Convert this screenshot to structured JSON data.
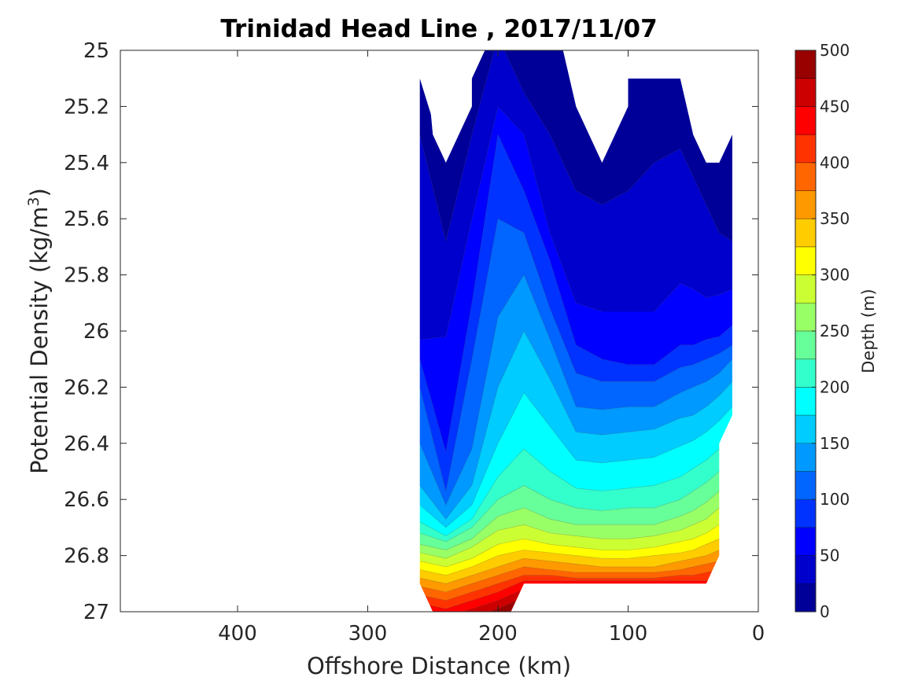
{
  "chart_data": {
    "type": "contour",
    "title": "Trinidad Head Line , 2017/11/07",
    "xlabel": "Offshore Distance (km)",
    "ylabel": "Potential Density (kg/m3)",
    "ylabel_base": "Potential Density (kg/m",
    "ylabel_sup": "3",
    "ylabel_end": ")",
    "xlim": [
      490,
      0
    ],
    "ylim": [
      25,
      27
    ],
    "x_reversed": true,
    "y_reversed": true,
    "x_ticks": [
      400,
      300,
      200,
      100,
      0
    ],
    "x_tick_labels": [
      "400",
      "300",
      "200",
      "100",
      "0"
    ],
    "y_ticks": [
      25,
      25.2,
      25.4,
      25.6,
      25.8,
      26,
      26.2,
      26.4,
      26.6,
      26.8,
      27
    ],
    "y_tick_labels": [
      "25",
      "25.2",
      "25.4",
      "25.6",
      "25.8",
      "26",
      "26.2",
      "26.4",
      "26.6",
      "26.8",
      "27"
    ],
    "grid": false,
    "colorbar": {
      "label": "Depth (m)",
      "colormap": "jet",
      "range": [
        0,
        500
      ],
      "level_step": 25,
      "ticks": [
        0,
        50,
        100,
        150,
        200,
        250,
        300,
        350,
        400,
        450,
        500
      ],
      "tick_labels": [
        "0",
        "50",
        "100",
        "150",
        "200",
        "250",
        "300",
        "350",
        "400",
        "450",
        "500"
      ]
    },
    "stations_x": [
      260,
      240,
      220,
      200,
      180,
      160,
      140,
      120,
      100,
      80,
      60,
      50,
      40,
      30,
      20
    ],
    "depth_isopycnals": [
      {
        "depth": 0,
        "sigma": [
          25.1,
          25.4,
          25.1,
          24.8,
          24.8,
          24.8,
          25.2,
          25.4,
          25.1,
          25.1,
          25.1,
          25.3,
          25.4,
          25.4,
          25.3
        ]
      },
      {
        "depth": 25,
        "sigma": [
          25.3,
          25.68,
          25.3,
          24.95,
          25.15,
          25.3,
          25.5,
          25.55,
          25.5,
          25.4,
          25.35,
          25.45,
          25.55,
          25.65,
          25.68
        ]
      },
      {
        "depth": 50,
        "sigma": [
          26.03,
          26.02,
          25.6,
          25.2,
          25.3,
          25.65,
          25.9,
          25.93,
          25.93,
          25.93,
          25.83,
          25.85,
          25.88,
          25.87,
          25.85
        ]
      },
      {
        "depth": 75,
        "sigma": [
          26.1,
          26.43,
          25.9,
          25.3,
          25.5,
          25.75,
          26.05,
          26.1,
          26.12,
          26.12,
          26.05,
          26.05,
          26.03,
          26.02,
          25.98
        ]
      },
      {
        "depth": 100,
        "sigma": [
          26.2,
          26.57,
          26.1,
          25.6,
          25.65,
          25.92,
          26.15,
          26.18,
          26.18,
          26.18,
          26.13,
          26.12,
          26.1,
          26.08,
          26.05
        ]
      },
      {
        "depth": 125,
        "sigma": [
          26.4,
          26.62,
          26.42,
          25.95,
          25.8,
          26.03,
          26.27,
          26.28,
          26.27,
          26.27,
          26.22,
          26.2,
          26.18,
          26.15,
          26.1
        ]
      },
      {
        "depth": 150,
        "sigma": [
          26.55,
          26.67,
          26.55,
          26.2,
          26.0,
          26.17,
          26.36,
          26.37,
          26.36,
          26.35,
          26.31,
          26.3,
          26.27,
          26.23,
          26.18
        ]
      },
      {
        "depth": 175,
        "sigma": [
          26.62,
          26.7,
          26.62,
          26.4,
          26.22,
          26.34,
          26.46,
          26.47,
          26.46,
          26.45,
          26.41,
          26.39,
          26.36,
          26.32,
          26.27
        ]
      },
      {
        "depth": 200,
        "sigma": [
          26.68,
          26.73,
          26.67,
          26.52,
          26.42,
          26.5,
          26.56,
          26.57,
          26.56,
          26.55,
          26.52,
          26.49,
          26.46,
          26.42,
          26.36
        ]
      },
      {
        "depth": 225,
        "sigma": [
          26.72,
          26.75,
          26.7,
          26.6,
          26.55,
          26.6,
          26.63,
          26.64,
          26.63,
          26.63,
          26.6,
          26.57,
          26.54,
          26.5,
          26.45
        ]
      },
      {
        "depth": 250,
        "sigma": [
          26.76,
          26.78,
          26.74,
          26.66,
          26.63,
          26.67,
          26.69,
          26.69,
          26.69,
          26.69,
          26.66,
          26.64,
          26.61,
          26.57,
          26.53
        ]
      },
      {
        "depth": 275,
        "sigma": [
          26.79,
          26.81,
          26.77,
          26.71,
          26.69,
          26.72,
          26.73,
          26.74,
          26.74,
          26.73,
          26.71,
          26.69,
          26.67,
          26.63,
          26.6
        ]
      },
      {
        "depth": 300,
        "sigma": [
          26.82,
          26.84,
          26.81,
          26.76,
          26.74,
          26.76,
          26.77,
          26.78,
          26.78,
          26.77,
          26.75,
          26.74,
          26.72,
          26.69,
          26.67
        ]
      },
      {
        "depth": 325,
        "sigma": [
          26.85,
          26.87,
          26.84,
          26.8,
          26.78,
          26.79,
          26.8,
          26.81,
          26.81,
          26.8,
          26.79,
          26.78,
          26.76,
          26.74,
          26.72
        ]
      },
      {
        "depth": 350,
        "sigma": [
          26.88,
          26.9,
          26.87,
          26.84,
          26.81,
          26.82,
          26.83,
          26.84,
          26.84,
          26.84,
          26.82,
          26.81,
          26.8,
          26.78,
          26.77
        ]
      },
      {
        "depth": 375,
        "sigma": [
          26.91,
          26.93,
          26.9,
          26.87,
          26.84,
          26.85,
          26.86,
          26.86,
          26.86,
          26.86,
          26.85,
          26.84,
          26.83,
          26.82,
          26.81
        ]
      },
      {
        "depth": 400,
        "sigma": [
          26.94,
          26.96,
          26.93,
          26.9,
          26.87,
          26.87,
          26.88,
          26.88,
          26.88,
          26.88,
          26.87,
          26.87,
          26.86,
          26.85,
          26.85
        ]
      },
      {
        "depth": 425,
        "sigma": [
          26.97,
          26.99,
          26.96,
          26.93,
          26.89,
          26.89,
          26.89,
          26.89,
          26.89,
          26.89,
          26.89,
          26.89,
          26.89,
          26.88,
          26.88
        ]
      },
      {
        "depth": 450,
        "sigma": [
          27.0,
          27.02,
          26.99,
          26.96,
          26.92,
          26.92,
          26.92,
          26.92,
          26.92,
          26.92,
          26.92,
          26.92,
          26.92,
          26.92,
          26.92
        ]
      },
      {
        "depth": 475,
        "sigma": [
          27.03,
          27.05,
          27.02,
          26.99,
          26.95,
          26.95,
          26.95,
          26.95,
          26.95,
          26.95,
          26.95,
          26.95,
          26.95,
          26.95,
          26.95
        ]
      }
    ],
    "data_region_outline": [
      [
        260,
        25.1
      ],
      [
        252,
        25.2
      ],
      [
        250,
        25.3
      ],
      [
        240,
        25.4
      ],
      [
        220,
        25.2
      ],
      [
        220,
        25.1
      ],
      [
        210,
        25.0
      ],
      [
        150,
        25.0
      ],
      [
        140,
        25.1
      ],
      [
        140,
        25.2
      ],
      [
        120,
        25.4
      ],
      [
        100,
        25.2
      ],
      [
        100,
        25.1
      ],
      [
        60,
        25.1
      ],
      [
        50,
        25.2
      ],
      [
        50,
        25.3
      ],
      [
        40,
        25.4
      ],
      [
        30,
        25.4
      ],
      [
        20,
        25.3
      ],
      [
        20,
        26.3
      ],
      [
        30,
        26.4
      ],
      [
        30,
        26.8
      ],
      [
        40,
        26.9
      ],
      [
        180,
        26.9
      ],
      [
        190,
        27.0
      ],
      [
        250,
        27.0
      ],
      [
        260,
        26.9
      ]
    ]
  }
}
